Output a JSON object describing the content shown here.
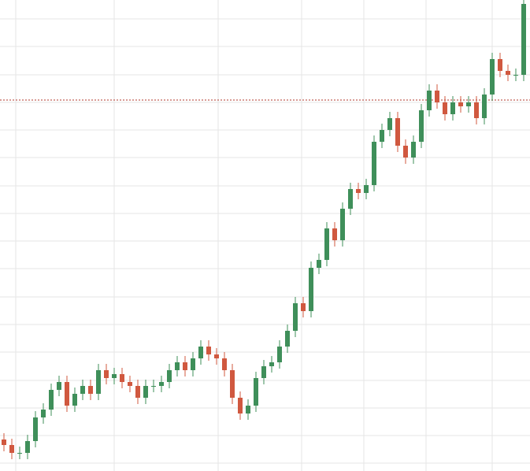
{
  "chart_data": {
    "type": "candlestick",
    "xlim": [
      0,
      673
    ],
    "ylim": [
      0,
      598
    ],
    "xticks": [
      20,
      145,
      277,
      383,
      462,
      541,
      625
    ],
    "yticks": [
      574,
      539,
      503,
      468,
      433,
      398,
      362,
      327,
      292,
      257,
      221,
      186,
      151,
      115,
      80,
      45,
      10
    ],
    "grid": true,
    "up_color": "#3f8f5a",
    "down_color": "#d0583f",
    "reference_line": {
      "value": 471,
      "color": "#b03a2e"
    },
    "x": [
      5,
      15,
      25,
      35,
      45,
      55,
      65,
      75,
      85,
      95,
      105,
      115,
      125,
      135,
      145,
      155,
      165,
      175,
      185,
      195,
      205,
      215,
      225,
      235,
      245,
      255,
      265,
      275,
      285,
      295,
      305,
      315,
      325,
      335,
      345,
      355,
      365,
      375,
      385,
      395,
      405,
      415,
      425,
      435,
      445,
      455,
      465,
      475,
      485,
      495,
      505,
      515,
      525,
      535,
      545,
      555,
      565,
      575,
      585,
      595,
      605,
      615,
      625,
      635,
      645,
      655,
      665
    ],
    "open": [
      40,
      33,
      23,
      23,
      38,
      68,
      78,
      103,
      113,
      83,
      98,
      108,
      98,
      128,
      118,
      123,
      113,
      108,
      93,
      108,
      108,
      113,
      128,
      138,
      128,
      143,
      158,
      148,
      143,
      128,
      93,
      73,
      83,
      118,
      133,
      138,
      158,
      178,
      213,
      203,
      258,
      268,
      308,
      293,
      333,
      358,
      353,
      363,
      418,
      433,
      448,
      413,
      398,
      418,
      458,
      483,
      468,
      453,
      468,
      463,
      468,
      448,
      478,
      523,
      508,
      503,
      503
    ],
    "high": [
      48,
      41,
      31,
      46,
      76,
      86,
      111,
      121,
      121,
      106,
      116,
      116,
      136,
      136,
      131,
      131,
      121,
      116,
      116,
      116,
      121,
      136,
      146,
      146,
      151,
      166,
      166,
      156,
      151,
      136,
      101,
      91,
      126,
      141,
      146,
      166,
      186,
      221,
      221,
      266,
      276,
      316,
      316,
      341,
      366,
      366,
      371,
      426,
      441,
      456,
      456,
      421,
      426,
      466,
      491,
      491,
      476,
      476,
      476,
      476,
      476,
      486,
      531,
      531,
      516,
      511,
      598
    ],
    "low": [
      25,
      15,
      15,
      15,
      30,
      60,
      70,
      95,
      75,
      75,
      90,
      90,
      90,
      110,
      110,
      105,
      100,
      85,
      85,
      100,
      100,
      105,
      120,
      120,
      120,
      135,
      140,
      135,
      120,
      85,
      65,
      65,
      75,
      110,
      125,
      130,
      150,
      170,
      195,
      195,
      250,
      260,
      285,
      285,
      325,
      345,
      345,
      355,
      410,
      425,
      405,
      390,
      390,
      410,
      450,
      460,
      445,
      445,
      455,
      455,
      440,
      440,
      470,
      500,
      495,
      495,
      495
    ],
    "close": [
      33,
      23,
      23,
      38,
      68,
      78,
      103,
      113,
      83,
      98,
      108,
      98,
      128,
      118,
      123,
      113,
      108,
      93,
      108,
      108,
      113,
      128,
      138,
      128,
      143,
      158,
      148,
      143,
      128,
      93,
      73,
      83,
      118,
      133,
      138,
      158,
      178,
      213,
      203,
      258,
      268,
      308,
      293,
      333,
      358,
      353,
      363,
      418,
      433,
      448,
      413,
      398,
      418,
      458,
      483,
      468,
      453,
      468,
      463,
      468,
      448,
      478,
      523,
      508,
      503,
      503,
      593
    ]
  }
}
